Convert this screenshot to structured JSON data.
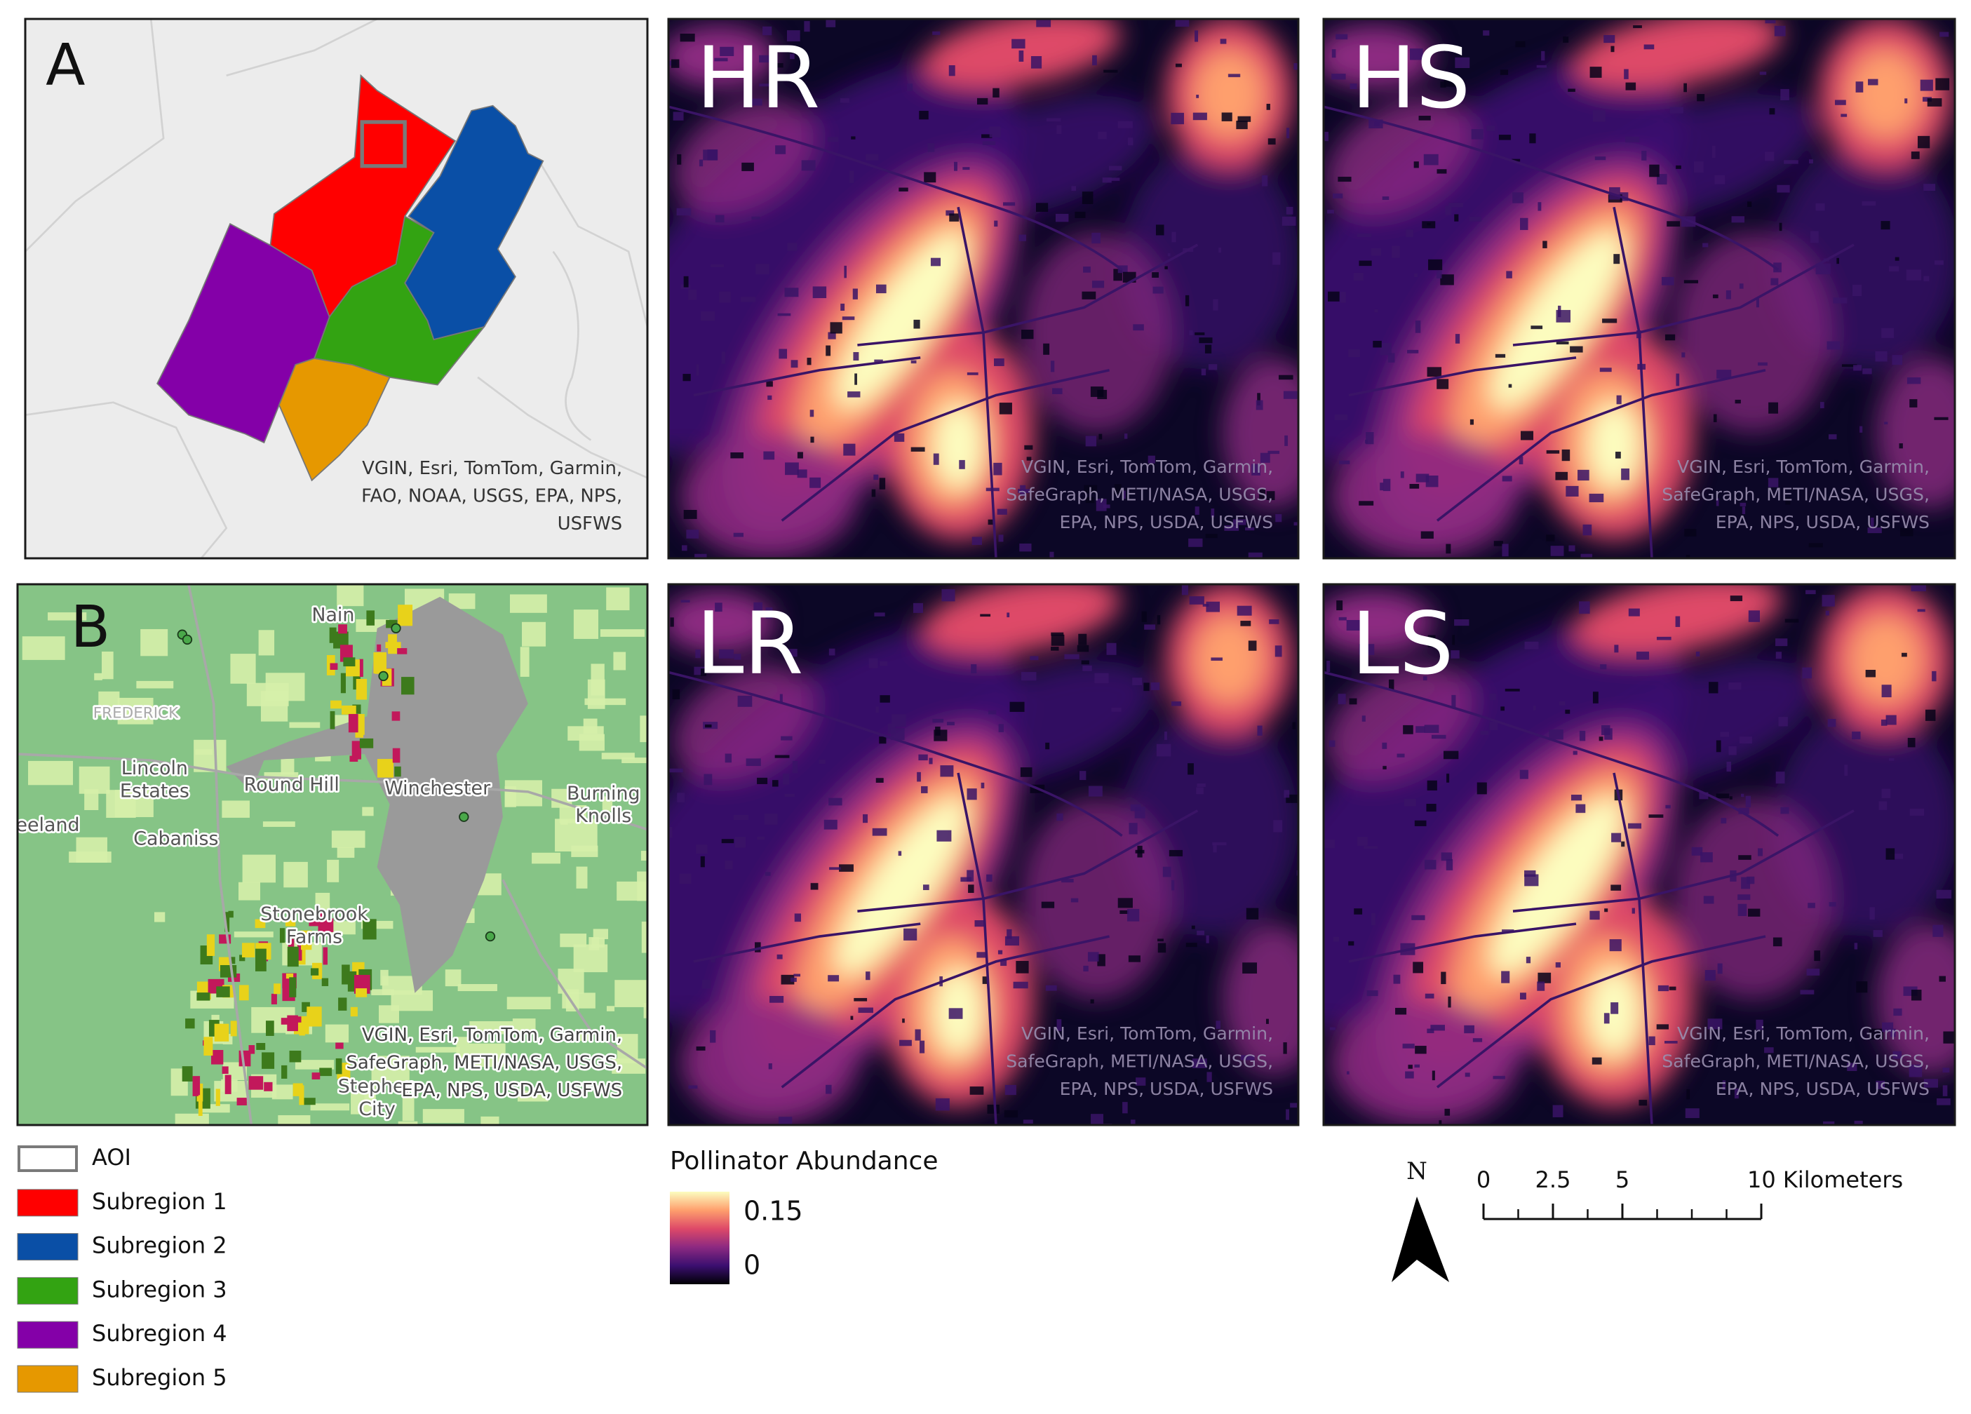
{
  "panel_a": {
    "label": "A",
    "attribution": [
      "VGIN, Esri, TomTom, Garmin,",
      "FAO, NOAA, USGS, EPA, NPS,",
      "USFWS"
    ]
  },
  "panel_b": {
    "label": "B",
    "places": [
      [
        "Nain"
      ],
      [
        "FREDERICK"
      ],
      [
        "Lincoln",
        "Estates"
      ],
      [
        "Round Hill"
      ],
      [
        "Winchester"
      ],
      [
        "Burning",
        "Knolls"
      ],
      [
        "eeland"
      ],
      [
        "Cabaniss"
      ],
      [
        "Stonebrook",
        "Farms"
      ],
      [
        "Stephen",
        "City"
      ]
    ],
    "attribution": [
      "VGIN, Esri, TomTom, Garmin,",
      "SafeGraph, METI/NASA, USGS,",
      "EPA, NPS, USDA, USFWS"
    ]
  },
  "maps": [
    {
      "label": "HR",
      "attribution": [
        "VGIN, Esri, TomTom, Garmin,",
        "SafeGraph, METI/NASA, USGS,",
        "EPA, NPS, USDA, USFWS"
      ]
    },
    {
      "label": "HS",
      "attribution": [
        "VGIN, Esri, TomTom, Garmin,",
        "SafeGraph, METI/NASA, USGS,",
        "EPA, NPS, USDA, USFWS"
      ]
    },
    {
      "label": "LR",
      "attribution": [
        "VGIN, Esri, TomTom, Garmin,",
        "SafeGraph, METI/NASA, USGS,",
        "EPA, NPS, USDA, USFWS"
      ]
    },
    {
      "label": "LS",
      "attribution": [
        "VGIN, Esri, TomTom, Garmin,",
        "SafeGraph, METI/NASA, USGS,",
        "EPA, NPS, USDA, USFWS"
      ]
    }
  ],
  "legend": [
    {
      "label": "AOI",
      "outline": "#7a7a7a"
    },
    {
      "label": "Subregion 1",
      "color": "#ff0000"
    },
    {
      "label": "Subregion 2",
      "color": "#0a4fa6"
    },
    {
      "label": "Subregion 3",
      "color": "#33a312"
    },
    {
      "label": "Subregion 4",
      "color": "#8400a8"
    },
    {
      "label": "Subregion 5",
      "color": "#e69800"
    }
  ],
  "colorbar": {
    "title": "Pollinator Abundance",
    "lim": [
      0,
      0.15
    ],
    "ticks": [
      0.15,
      0
    ],
    "colors": [
      "#000004",
      "#3b0f70",
      "#8c2981",
      "#de4968",
      "#fe9f6d",
      "#fcfdbf"
    ]
  },
  "scalebar": {
    "north": "N",
    "lim": [
      0,
      10
    ],
    "ticks": [
      0,
      2.5,
      5,
      {
        "value": 10,
        "label": "10 Kilometers"
      }
    ]
  }
}
